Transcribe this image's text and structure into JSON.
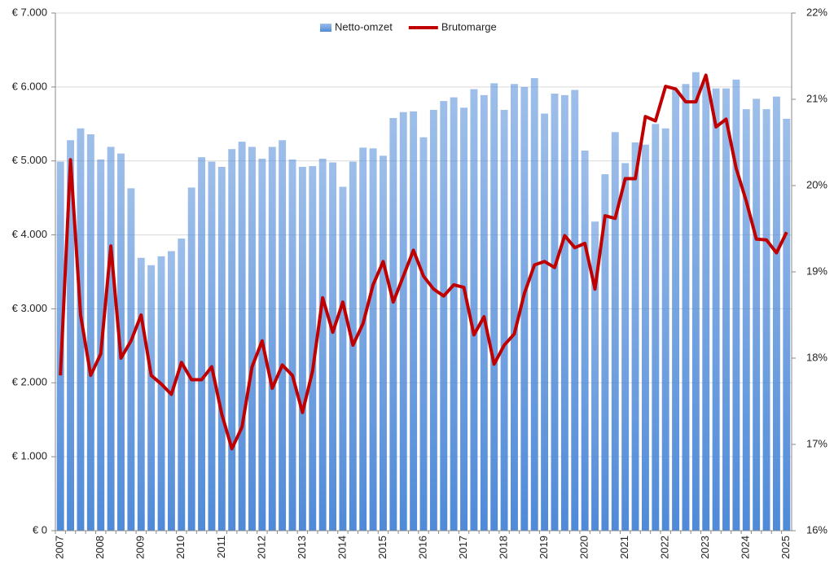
{
  "chart_data": {
    "type": "bar-line",
    "categories": [
      "2007",
      null,
      null,
      null,
      "2008",
      null,
      null,
      null,
      "2009",
      null,
      null,
      null,
      "2010",
      null,
      null,
      null,
      "2011",
      null,
      null,
      null,
      "2012",
      null,
      null,
      null,
      "2013",
      null,
      null,
      null,
      "2014",
      null,
      null,
      null,
      "2015",
      null,
      null,
      null,
      "2016",
      null,
      null,
      null,
      "2017",
      null,
      null,
      null,
      "2018",
      null,
      null,
      null,
      "2019",
      null,
      null,
      null,
      "2020",
      null,
      null,
      null,
      "2021",
      null,
      null,
      null,
      "2022",
      null,
      null,
      null,
      "2023",
      null,
      null,
      null,
      "2024",
      null,
      null,
      null,
      "2025"
    ],
    "series": [
      {
        "name": "Netto-omzet",
        "type": "bar",
        "color": "#4f8ad8",
        "values": [
          4990,
          5280,
          5440,
          5360,
          5020,
          5190,
          5100,
          4630,
          3690,
          3590,
          3710,
          3780,
          3950,
          4640,
          5050,
          4990,
          4920,
          5160,
          5260,
          5190,
          5030,
          5190,
          5280,
          5020,
          4920,
          4930,
          5030,
          4980,
          4650,
          4990,
          5180,
          5170,
          5070,
          5580,
          5660,
          5670,
          5320,
          5690,
          5810,
          5860,
          5720,
          5970,
          5890,
          6050,
          5690,
          6040,
          6000,
          6120,
          5640,
          5910,
          5890,
          5960,
          5140,
          4180,
          4820,
          5390,
          4970,
          5250,
          5220,
          5500,
          5440,
          5960,
          6040,
          6200,
          6060,
          5980,
          5980,
          6100,
          5700,
          5840,
          5700,
          5870,
          5570
        ]
      },
      {
        "name": "Brutomarge",
        "type": "line",
        "axis": "y2",
        "color": "#c00000",
        "values": [
          17.8,
          20.3,
          18.5,
          17.8,
          18.05,
          19.3,
          18.0,
          18.2,
          18.5,
          17.8,
          17.7,
          17.58,
          17.95,
          17.75,
          17.75,
          17.9,
          17.35,
          16.95,
          17.2,
          17.9,
          18.2,
          17.65,
          17.92,
          17.8,
          17.37,
          17.85,
          18.7,
          18.3,
          18.65,
          18.15,
          18.4,
          18.85,
          19.12,
          18.65,
          18.95,
          19.25,
          18.95,
          18.8,
          18.72,
          18.85,
          18.82,
          18.27,
          18.48,
          17.93,
          18.15,
          18.28,
          18.75,
          19.08,
          19.12,
          19.05,
          19.42,
          19.28,
          19.33,
          18.8,
          19.65,
          19.62,
          20.08,
          20.08,
          20.8,
          20.75,
          21.15,
          21.12,
          20.97,
          20.97,
          21.28,
          20.68,
          20.77,
          20.2,
          19.82,
          19.38,
          19.37,
          19.22,
          19.46
        ]
      }
    ],
    "ylim": [
      0,
      7000
    ],
    "yticks": [
      {
        "value": 0,
        "label": "€ 0"
      },
      {
        "value": 1000,
        "label": "€ 1.000"
      },
      {
        "value": 2000,
        "label": "€ 2.000"
      },
      {
        "value": 3000,
        "label": "€ 3.000"
      },
      {
        "value": 4000,
        "label": "€ 4.000"
      },
      {
        "value": 5000,
        "label": "€ 5.000"
      },
      {
        "value": 6000,
        "label": "€ 6.000"
      },
      {
        "value": 7000,
        "label": "€ 7.000"
      }
    ],
    "y2lim": [
      16,
      22
    ],
    "y2ticks": [
      {
        "value": 16,
        "label": "16%"
      },
      {
        "value": 17,
        "label": "17%"
      },
      {
        "value": 18,
        "label": "18%"
      },
      {
        "value": 19,
        "label": "19%"
      },
      {
        "value": 20,
        "label": "20%"
      },
      {
        "value": 21,
        "label": "21%"
      },
      {
        "value": 22,
        "label": "22%"
      }
    ],
    "grid": true,
    "legend": "top"
  }
}
